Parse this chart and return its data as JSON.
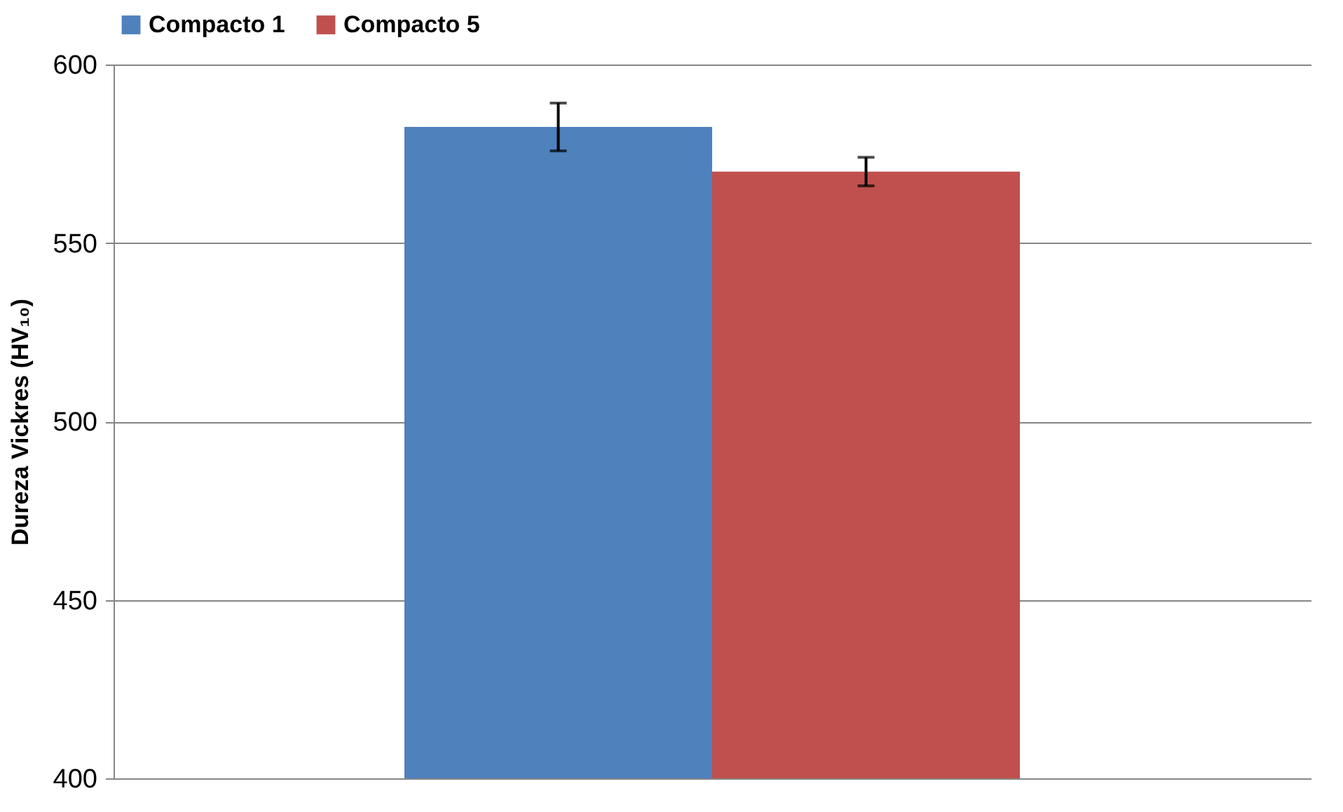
{
  "chart_data": {
    "type": "bar",
    "ylabel": "Dureza Vickres (HV₁₀)",
    "categories": [
      null
    ],
    "series": [
      {
        "name": "Compacto 1",
        "color": "#4f81bd",
        "values": [
          582.5
        ],
        "errors": [
          6.7
        ]
      },
      {
        "name": "Compacto 5",
        "color": "#c0504d",
        "values": [
          570
        ],
        "errors": [
          4
        ]
      }
    ],
    "ylim": [
      400,
      600
    ],
    "yticks": [
      400,
      450,
      500,
      550,
      600
    ],
    "grid": "y",
    "legend": "top",
    "tick_labels": "y"
  }
}
